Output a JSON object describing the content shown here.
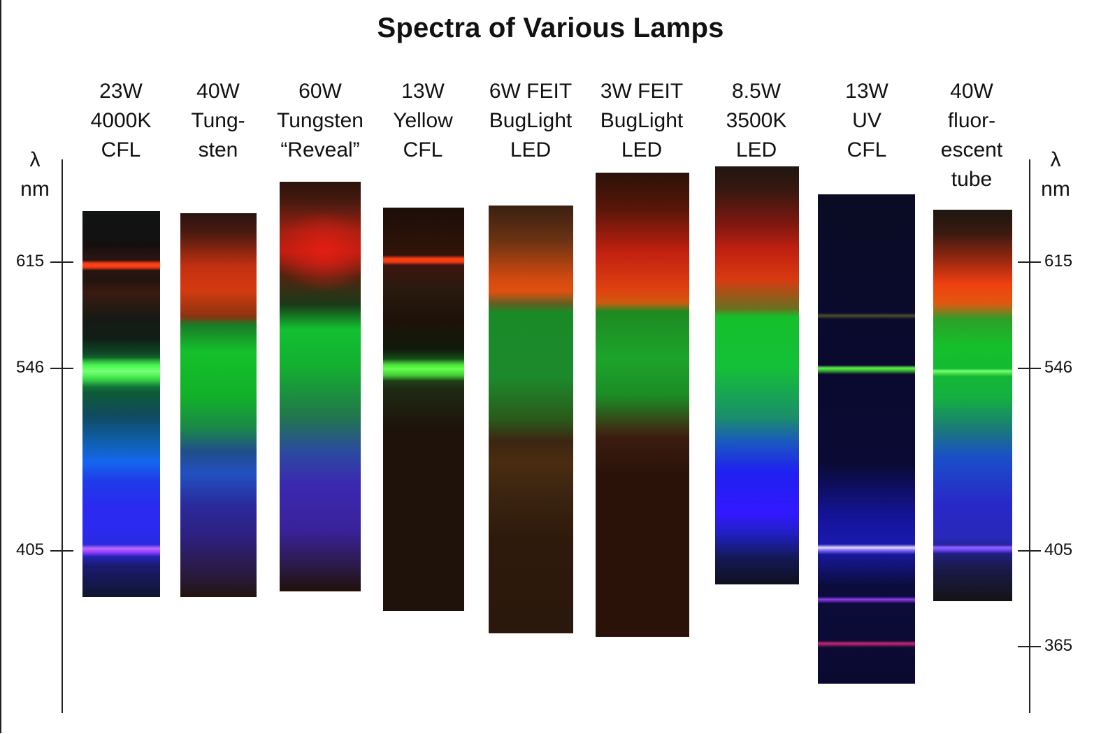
{
  "title": "Spectra of Various Lamps",
  "axis": {
    "symbol": "λ",
    "unit": "nm",
    "ticks_left": [
      "615",
      "546",
      "405"
    ],
    "ticks_right": [
      "615",
      "546",
      "405",
      "365"
    ]
  },
  "lamps": [
    {
      "lines": [
        "23W",
        "4000K",
        "CFL"
      ]
    },
    {
      "lines": [
        "40W",
        "Tung-",
        "sten"
      ]
    },
    {
      "lines": [
        "60W",
        "Tungsten",
        "“Reveal”"
      ]
    },
    {
      "lines": [
        "13W",
        "Yellow",
        "CFL"
      ]
    },
    {
      "lines": [
        "6W FEIT",
        "BugLight",
        "LED"
      ]
    },
    {
      "lines": [
        "3W FEIT",
        "BugLight",
        "LED"
      ]
    },
    {
      "lines": [
        "8.5W",
        "3500K",
        "LED"
      ]
    },
    {
      "lines": [
        "13W",
        "UV",
        "CFL"
      ]
    },
    {
      "lines": [
        "40W",
        "fluor-",
        "escent",
        "tube"
      ]
    }
  ]
}
